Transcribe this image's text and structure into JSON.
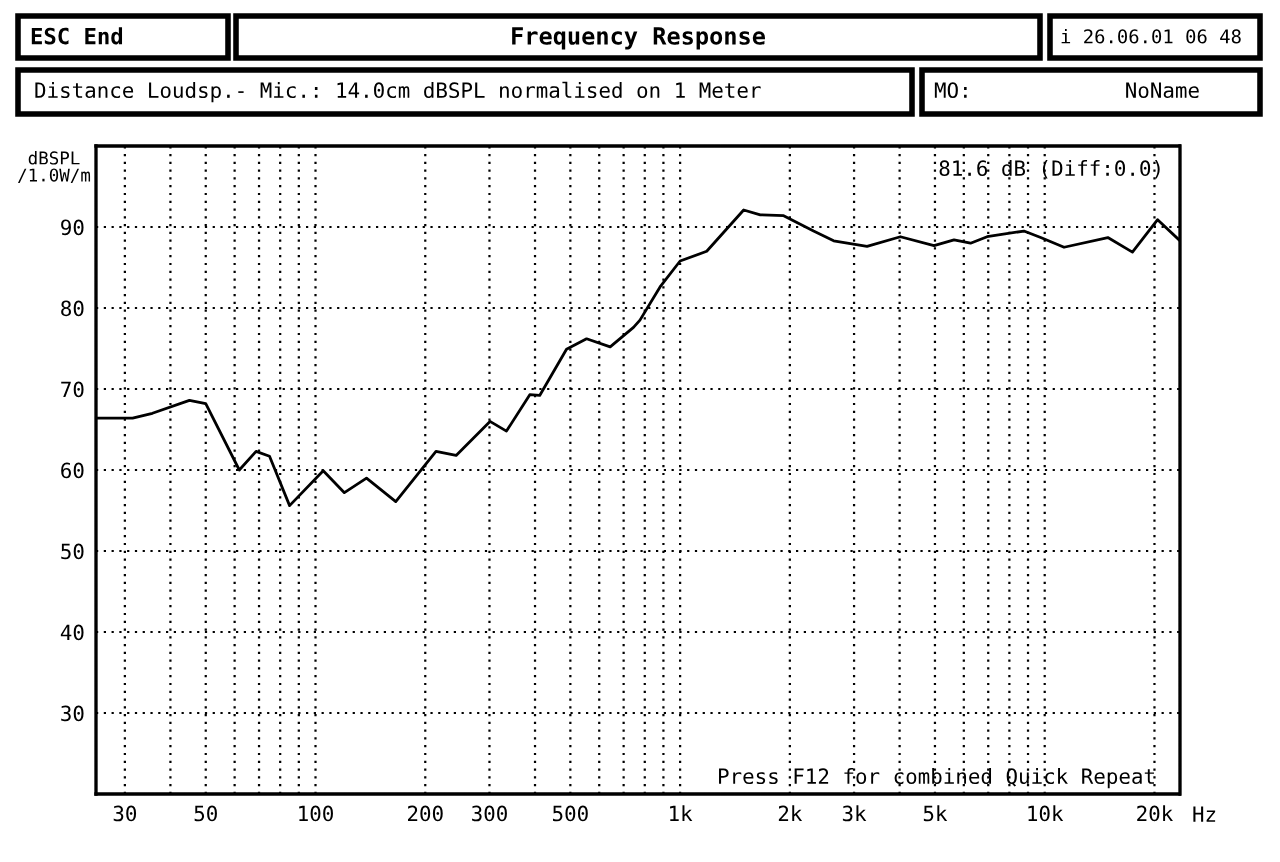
{
  "chart_data": {
    "type": "line",
    "title": "Frequency Response",
    "ylabel": "dBSPL\n/1.0W/m",
    "annotations": [
      "ESC End",
      "i 26.06.01 06 48",
      "Distance Loudsp.- Mic.: 14.0cm dBSPL normalised on 1 Meter",
      "MO:",
      "NoName",
      "81.6 dB (Diff:0.0)",
      "Press F12 for combined Quick Repeat"
    ],
    "x": [
      25,
      31.5,
      35.7,
      45.1,
      50,
      61.8,
      68.7,
      74.8,
      84.9,
      105,
      120,
      138,
      166,
      214,
      243,
      301,
      334,
      387,
      412,
      488,
      554,
      643,
      745,
      776,
      881,
      1000,
      1183,
      1494,
      1659,
      1923,
      2323,
      2637,
      3256,
      4020,
      4970,
      5640,
      6260,
      6950,
      8770,
      9750,
      11300,
      14900,
      17400,
      20400,
      23500
    ],
    "series": [
      {
        "color": "#000000",
        "values": [
          66.4,
          66.4,
          67,
          68.6,
          68.2,
          60,
          62.3,
          61.7,
          55.6,
          59.9,
          57.2,
          59,
          56.1,
          62.3,
          61.8,
          66,
          64.8,
          69.3,
          69.2,
          74.9,
          76.2,
          75.2,
          77.6,
          78.5,
          82.6,
          85.8,
          87,
          92.1,
          91.5,
          91.4,
          89.5,
          88.3,
          87.6,
          88.8,
          87.7,
          88.4,
          88,
          88.8,
          89.5,
          88.7,
          87.5,
          88.7,
          86.9,
          90.9,
          88.3
        ]
      }
    ],
    "log": "x",
    "xlim": [
      25,
      23500
    ],
    "ylim": [
      20,
      100
    ],
    "xticks": [
      30,
      {
        "value": 40,
        "label": null
      },
      50,
      {
        "value": 60,
        "label": null
      },
      {
        "value": 70,
        "label": null
      },
      {
        "value": 80,
        "label": null
      },
      {
        "value": 90,
        "label": null
      },
      100,
      200,
      300,
      {
        "value": 400,
        "label": null
      },
      500,
      {
        "value": 600,
        "label": null
      },
      {
        "value": 700,
        "label": null
      },
      {
        "value": 800,
        "label": null
      },
      {
        "value": 900,
        "label": null
      },
      {
        "value": 1000,
        "label": "1k"
      },
      {
        "value": 2000,
        "label": "2k"
      },
      {
        "value": 3000,
        "label": "3k"
      },
      {
        "value": 4000,
        "label": null
      },
      {
        "value": 5000,
        "label": "5k"
      },
      {
        "value": 6000,
        "label": null
      },
      {
        "value": 7000,
        "label": null
      },
      {
        "value": 8000,
        "label": null
      },
      {
        "value": 9000,
        "label": null
      },
      {
        "value": 10000,
        "label": "10k"
      },
      {
        "value": 20000,
        "label": "20k"
      }
    ],
    "xlabel": "Hz",
    "yticks": [
      30,
      40,
      50,
      60,
      70,
      80,
      90
    ],
    "grid": true
  }
}
